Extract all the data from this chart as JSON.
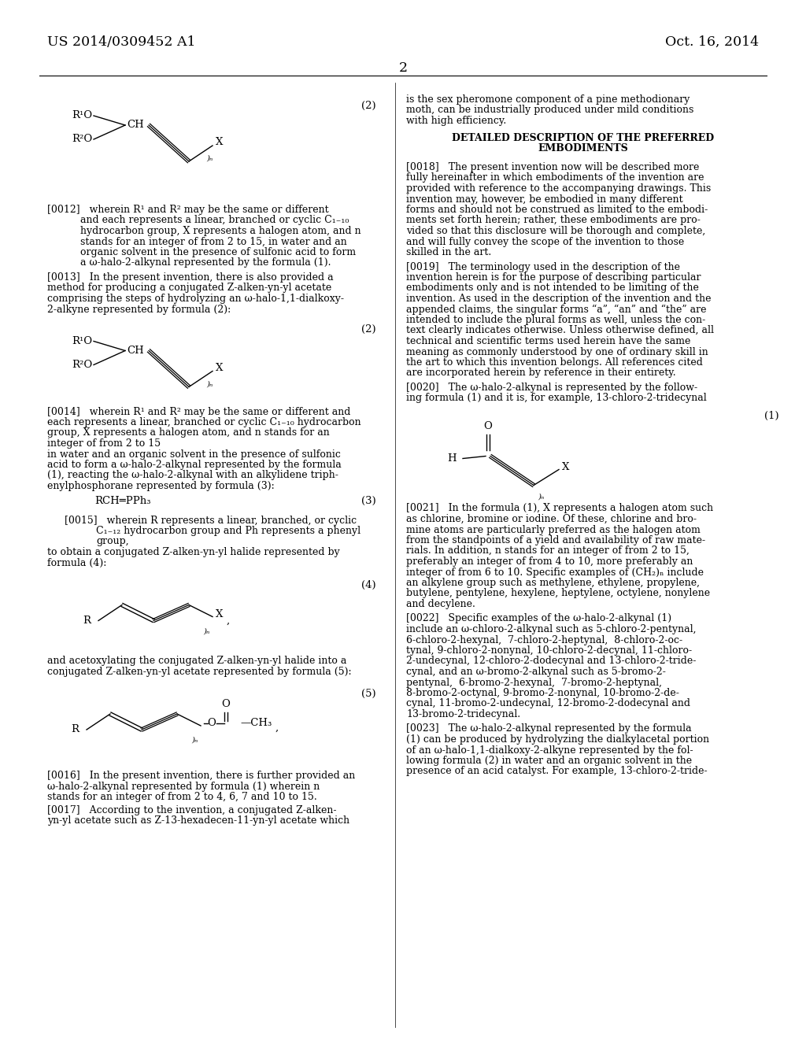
{
  "background_color": "#ffffff",
  "page_number": "2",
  "header_left": "US 2014/0309452 A1",
  "header_right": "Oct. 16, 2014"
}
